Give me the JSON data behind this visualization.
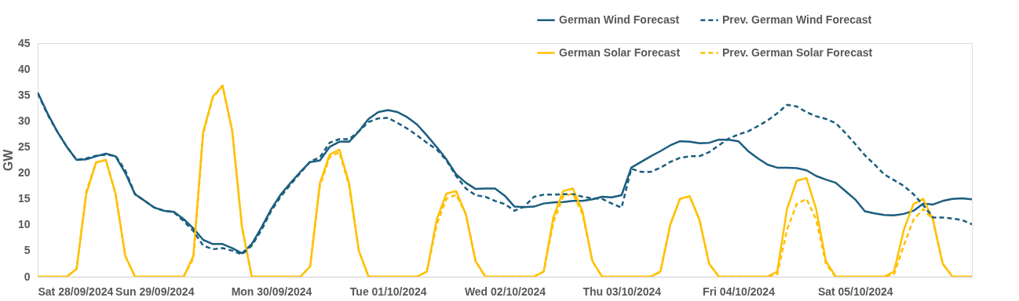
{
  "chart_data": {
    "type": "line",
    "ylabel": "GW",
    "ylim": [
      0,
      45
    ],
    "yticks": [
      0,
      5,
      10,
      15,
      20,
      25,
      30,
      35,
      40,
      45
    ],
    "grid": false,
    "legend": "top right",
    "marker": "none",
    "xlim": [
      "2024-09-28T00:00",
      "2024-10-06T00:00"
    ],
    "xticks": [
      {
        "value": "2024-09-28T00:00",
        "label": "Sat 28/09/2024"
      },
      {
        "value": "2024-09-29T00:00",
        "label": "Sun 29/09/2024"
      },
      {
        "value": "2024-09-30T00:00",
        "label": "Mon 30/09/2024"
      },
      {
        "value": "2024-10-01T00:00",
        "label": "Tue 01/10/2024"
      },
      {
        "value": "2024-10-02T00:00",
        "label": "Wed 02/10/2024"
      },
      {
        "value": "2024-10-03T00:00",
        "label": "Thu 03/10/2024"
      },
      {
        "value": "2024-10-04T00:00",
        "label": "Fri 04/10/2024"
      },
      {
        "value": "2024-10-05T00:00",
        "label": "Sat 05/10/2024"
      }
    ],
    "x": [
      "2024-09-28T00:00",
      "2024-09-28T02:00",
      "2024-09-28T04:00",
      "2024-09-28T06:00",
      "2024-09-28T08:00",
      "2024-09-28T10:00",
      "2024-09-28T12:00",
      "2024-09-28T14:00",
      "2024-09-28T16:00",
      "2024-09-28T18:00",
      "2024-09-28T20:00",
      "2024-09-28T22:00",
      "2024-09-29T00:00",
      "2024-09-29T02:00",
      "2024-09-29T04:00",
      "2024-09-29T06:00",
      "2024-09-29T08:00",
      "2024-09-29T10:00",
      "2024-09-29T12:00",
      "2024-09-29T14:00",
      "2024-09-29T16:00",
      "2024-09-29T18:00",
      "2024-09-29T20:00",
      "2024-09-29T22:00",
      "2024-09-30T00:00",
      "2024-09-30T02:00",
      "2024-09-30T04:00",
      "2024-09-30T06:00",
      "2024-09-30T08:00",
      "2024-09-30T10:00",
      "2024-09-30T12:00",
      "2024-09-30T14:00",
      "2024-09-30T16:00",
      "2024-09-30T18:00",
      "2024-09-30T20:00",
      "2024-09-30T22:00",
      "2024-10-01T00:00",
      "2024-10-01T02:00",
      "2024-10-01T04:00",
      "2024-10-01T06:00",
      "2024-10-01T08:00",
      "2024-10-01T10:00",
      "2024-10-01T12:00",
      "2024-10-01T14:00",
      "2024-10-01T16:00",
      "2024-10-01T18:00",
      "2024-10-01T20:00",
      "2024-10-01T22:00",
      "2024-10-02T00:00",
      "2024-10-02T02:00",
      "2024-10-02T04:00",
      "2024-10-02T06:00",
      "2024-10-02T08:00",
      "2024-10-02T10:00",
      "2024-10-02T12:00",
      "2024-10-02T14:00",
      "2024-10-02T16:00",
      "2024-10-02T18:00",
      "2024-10-02T20:00",
      "2024-10-02T22:00",
      "2024-10-03T00:00",
      "2024-10-03T02:00",
      "2024-10-03T04:00",
      "2024-10-03T06:00",
      "2024-10-03T08:00",
      "2024-10-03T10:00",
      "2024-10-03T12:00",
      "2024-10-03T14:00",
      "2024-10-03T16:00",
      "2024-10-03T18:00",
      "2024-10-03T20:00",
      "2024-10-03T22:00",
      "2024-10-04T00:00",
      "2024-10-04T02:00",
      "2024-10-04T04:00",
      "2024-10-04T06:00",
      "2024-10-04T08:00",
      "2024-10-04T10:00",
      "2024-10-04T12:00",
      "2024-10-04T14:00",
      "2024-10-04T16:00",
      "2024-10-04T18:00",
      "2024-10-04T20:00",
      "2024-10-04T22:00",
      "2024-10-05T00:00",
      "2024-10-05T02:00",
      "2024-10-05T04:00",
      "2024-10-05T06:00",
      "2024-10-05T08:00",
      "2024-10-05T10:00",
      "2024-10-05T12:00",
      "2024-10-05T14:00",
      "2024-10-05T16:00",
      "2024-10-05T18:00",
      "2024-10-05T20:00",
      "2024-10-05T22:00",
      "2024-10-06T00:00"
    ],
    "series": [
      {
        "name": "German Wind Forecast",
        "color": "#1b5e7f",
        "line_style": "solid",
        "values": [
          35.5,
          31.5,
          28,
          25,
          22.5,
          22.6,
          23.2,
          23.7,
          23.2,
          20,
          15.9,
          14.6,
          13.3,
          12.7,
          12.5,
          11.1,
          9.3,
          7.1,
          6.3,
          6.3,
          5.5,
          4.5,
          6.3,
          9.5,
          13,
          15.9,
          18.1,
          20.2,
          22.1,
          22.4,
          25,
          26,
          26,
          28,
          30.4,
          31.7,
          32.1,
          31.7,
          30.7,
          29.3,
          27.2,
          25,
          22.6,
          19.7,
          18.1,
          16.9,
          17,
          17,
          15.6,
          13.5,
          13.4,
          13.5,
          14.1,
          14.3,
          14.4,
          14.6,
          14.6,
          14.9,
          15.4,
          15.3,
          15.7,
          21,
          22.1,
          23.2,
          24.2,
          25.3,
          26.1,
          26,
          25.7,
          25.8,
          26.4,
          26.4,
          26.1,
          24.2,
          22.8,
          21.6,
          21,
          21,
          20.9,
          20.5,
          19.4,
          18.7,
          18.1,
          16.5,
          14.9,
          12.6,
          12.2,
          11.9,
          11.8,
          12.1,
          12.7,
          14.1,
          13.9,
          14.6,
          15,
          15.1,
          14.9
        ]
      },
      {
        "name": "German Solar Forecast",
        "color": "#ffc000",
        "line_style": "solid",
        "values": [
          0,
          0,
          0,
          0,
          1.5,
          16,
          22,
          22.5,
          16,
          4,
          0,
          0,
          0,
          0,
          0,
          0,
          4,
          27.8,
          34.7,
          36.8,
          28,
          9.5,
          0,
          0,
          0,
          0,
          0,
          0,
          2,
          18,
          23.5,
          24.5,
          18,
          5,
          0,
          0,
          0,
          0,
          0,
          0,
          1,
          11,
          16,
          16.5,
          12,
          3,
          0,
          0,
          0,
          0,
          0,
          0,
          1,
          11.5,
          16.5,
          17,
          12.5,
          3,
          0,
          0,
          0,
          0,
          0,
          0,
          1,
          10,
          15,
          15.5,
          11,
          2.5,
          0,
          0,
          0,
          0,
          0,
          0,
          1,
          13,
          18.5,
          19,
          13,
          3,
          0,
          0,
          0,
          0,
          0,
          0,
          1,
          9,
          14,
          15,
          11,
          2.5,
          0,
          0,
          0
        ]
      },
      {
        "name": "Prev. German Wind Forecast",
        "color": "#1b5e7f",
        "line_style": "dashed",
        "values": [
          35.3,
          31.3,
          28,
          25,
          22.5,
          22.8,
          23.3,
          23.5,
          23.3,
          20.5,
          15.9,
          14.6,
          13.3,
          12.7,
          12.4,
          10.7,
          8.8,
          6,
          5.3,
          5.5,
          5,
          4.3,
          6,
          9,
          12.7,
          15.5,
          17.8,
          20,
          22.2,
          23,
          25.8,
          26.5,
          26.5,
          28,
          29.8,
          30.5,
          30.6,
          29.6,
          28.5,
          27.2,
          25.8,
          24.5,
          22.4,
          19.4,
          17,
          15.7,
          15.4,
          14.6,
          14,
          12.7,
          13.5,
          15.4,
          15.8,
          15.8,
          15.9,
          15.9,
          15.4,
          15.1,
          15,
          14.1,
          13.3,
          20.8,
          20.2,
          20.2,
          21,
          22.1,
          22.9,
          23.2,
          23.2,
          24,
          25.3,
          26.6,
          27.4,
          28,
          29,
          30.1,
          31.5,
          33.1,
          32.8,
          31.7,
          30.9,
          30.4,
          29.6,
          27.7,
          25.6,
          23.4,
          21.6,
          19.7,
          18.6,
          17.5,
          15.9,
          13.8,
          11.4,
          11.4,
          11.2,
          10.9,
          10.1
        ]
      },
      {
        "name": "Prev. German Solar Forecast",
        "color": "#ffc000",
        "line_style": "dashed",
        "values": [
          0,
          0,
          0,
          0,
          1.5,
          16.5,
          22,
          22.5,
          16,
          4,
          0,
          0,
          0,
          0,
          0,
          0,
          3.5,
          27.5,
          34.5,
          36.8,
          28,
          9.5,
          0,
          0,
          0,
          0,
          0,
          0,
          2,
          17.5,
          23,
          24,
          17.5,
          5,
          0,
          0,
          0,
          0,
          0,
          0,
          1,
          10,
          15,
          15.8,
          12,
          3,
          0,
          0,
          0,
          0,
          0,
          0,
          1,
          10.5,
          15.5,
          16,
          12,
          3,
          0,
          0,
          0,
          0,
          0,
          0,
          1,
          10,
          15,
          15.5,
          11,
          2.5,
          0,
          0,
          0,
          0,
          0,
          0,
          0.5,
          9,
          14,
          15,
          11,
          2.5,
          0,
          0,
          0,
          0,
          0,
          0,
          0.5,
          6,
          11,
          13,
          11,
          2.5,
          0,
          0,
          0
        ]
      }
    ]
  }
}
